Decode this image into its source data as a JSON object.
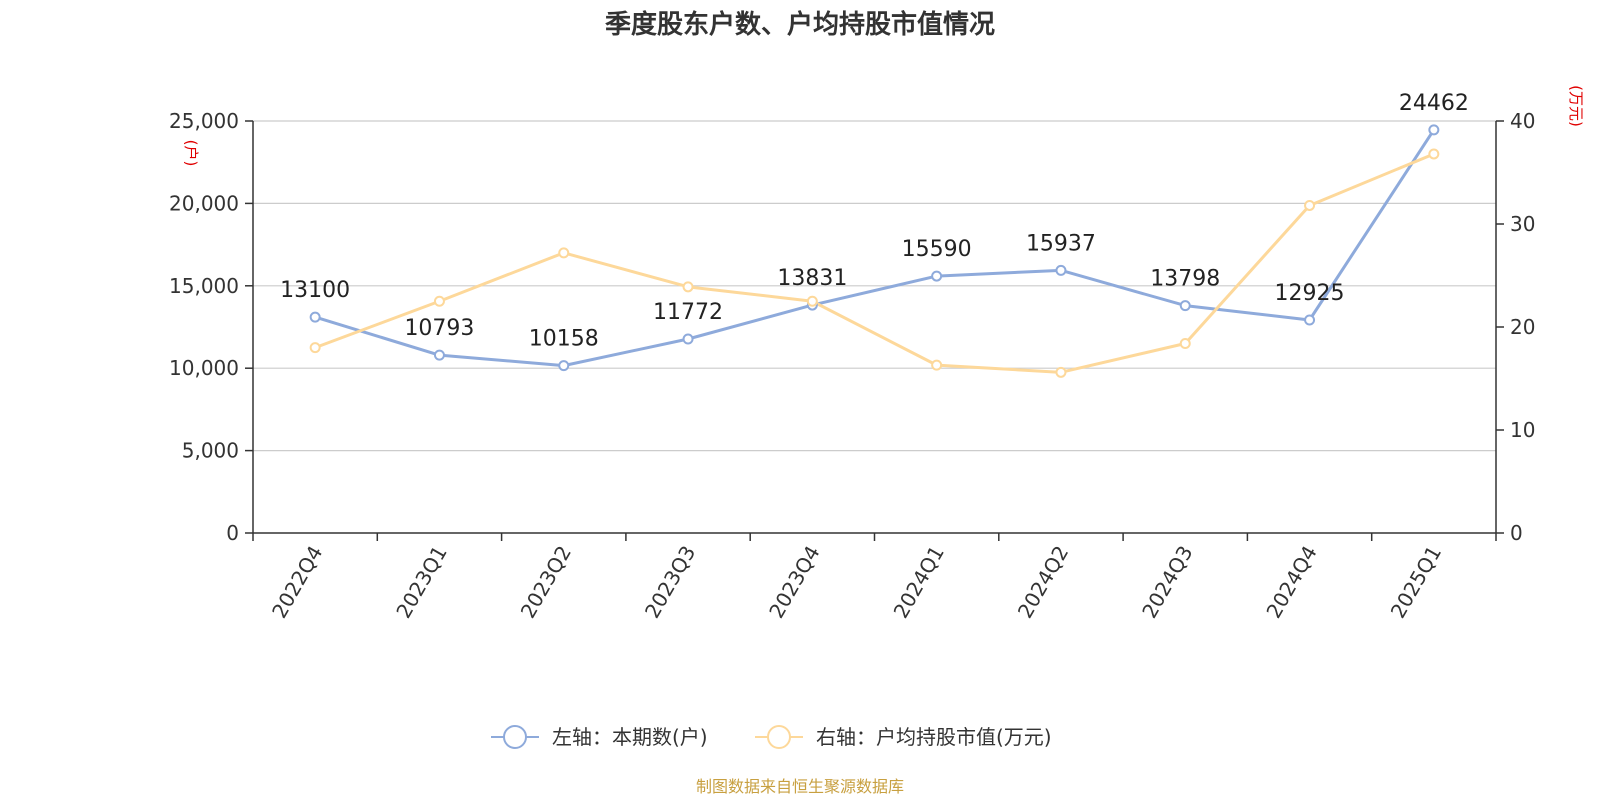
{
  "chart_data": {
    "type": "line",
    "title": "季度股东户数、户均持股市值情况",
    "categories": [
      "2022Q4",
      "2023Q1",
      "2023Q2",
      "2023Q3",
      "2023Q4",
      "2024Q1",
      "2024Q2",
      "2024Q3",
      "2024Q4",
      "2025Q1"
    ],
    "series": [
      {
        "name": "左轴：本期数(户)",
        "axis": "left",
        "color": "#8eaadb",
        "values": [
          13100,
          10793,
          10158,
          11772,
          13831,
          15590,
          15937,
          13798,
          12925,
          24462
        ],
        "labels": [
          "13100",
          "10793",
          "10158",
          "11772",
          "13831",
          "15590",
          "15937",
          "13798",
          "12925",
          "24462"
        ]
      },
      {
        "name": "右轴：户均持股市值(万元)",
        "axis": "right",
        "color": "#fdd89a",
        "values": [
          18.0,
          22.5,
          27.2,
          23.9,
          22.5,
          16.3,
          15.6,
          18.4,
          31.8,
          36.8
        ]
      }
    ],
    "left_axis": {
      "unit": "(户)",
      "ylim": [
        0,
        25000
      ],
      "ticks": [
        0,
        5000,
        10000,
        15000,
        20000,
        25000
      ],
      "tick_labels": [
        "0",
        "5,000",
        "10,000",
        "15,000",
        "20,000",
        "25,000"
      ]
    },
    "right_axis": {
      "unit": "(万元)",
      "ylim": [
        0,
        40
      ],
      "ticks": [
        0,
        10,
        20,
        30,
        40
      ],
      "tick_labels": [
        "0",
        "10",
        "20",
        "30",
        "40"
      ]
    },
    "grid": true,
    "legend_position": "bottom"
  },
  "source": "制图数据来自恒生聚源数据库"
}
